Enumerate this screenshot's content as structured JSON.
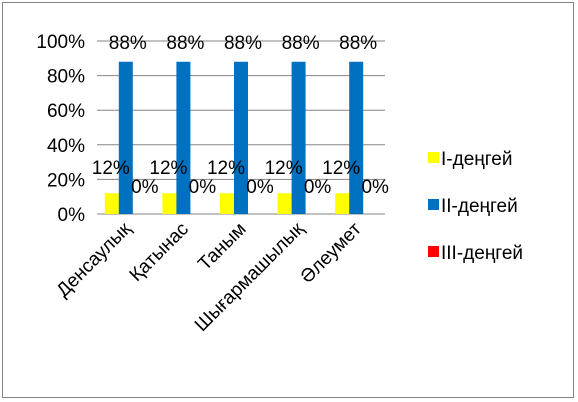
{
  "chart_data": {
    "type": "bar",
    "categories": [
      "Денсаулық",
      "Қатынас",
      "Таным",
      "Шығармашылық",
      "Әлеумет"
    ],
    "series": [
      {
        "name": "I-деңгей",
        "values": [
          12,
          12,
          12,
          12,
          12
        ],
        "labels": [
          "12%",
          "12%",
          "12%",
          "12%",
          "12%"
        ],
        "color": "#FFFF00"
      },
      {
        "name": "II-деңгей",
        "values": [
          88,
          88,
          88,
          88,
          88
        ],
        "labels": [
          "88%",
          "88%",
          "88%",
          "88%",
          "88%"
        ],
        "color": "#0070C0"
      },
      {
        "name": "III-деңгей",
        "values": [
          0,
          0,
          0,
          0,
          0
        ],
        "labels": [
          "0%",
          "0%",
          "0%",
          "0%",
          "0%"
        ],
        "color": "#FF0000"
      }
    ],
    "y_ticks": [
      "0%",
      "20%",
      "40%",
      "60%",
      "80%",
      "100%"
    ],
    "ylim": [
      0,
      100
    ],
    "grid": true,
    "legend_position": "right",
    "title": "",
    "xlabel": "",
    "ylabel": ""
  }
}
